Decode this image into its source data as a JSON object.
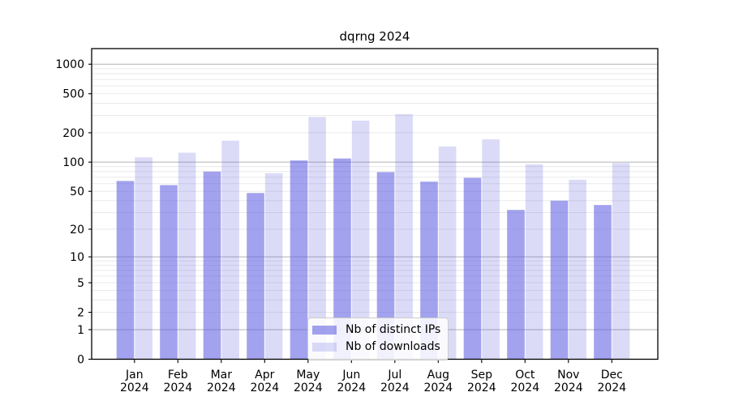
{
  "chart_data": {
    "type": "bar",
    "title": "dqrng 2024",
    "yscale": "log1p",
    "xlabel": "",
    "ylabel": "",
    "categories": [
      {
        "month": "Jan",
        "year": "2024"
      },
      {
        "month": "Feb",
        "year": "2024"
      },
      {
        "month": "Mar",
        "year": "2024"
      },
      {
        "month": "Apr",
        "year": "2024"
      },
      {
        "month": "May",
        "year": "2024"
      },
      {
        "month": "Jun",
        "year": "2024"
      },
      {
        "month": "Jul",
        "year": "2024"
      },
      {
        "month": "Aug",
        "year": "2024"
      },
      {
        "month": "Sep",
        "year": "2024"
      },
      {
        "month": "Oct",
        "year": "2024"
      },
      {
        "month": "Nov",
        "year": "2024"
      },
      {
        "month": "Dec",
        "year": "2024"
      }
    ],
    "series": [
      {
        "name": "Nb of distinct IPs",
        "color": "rgba(90,90,224,0.56)",
        "values": [
          64,
          58,
          80,
          48,
          104,
          109,
          79,
          63,
          69,
          32,
          40,
          36
        ]
      },
      {
        "name": "Nb of downloads",
        "color": "rgba(90,90,224,0.22)",
        "values": [
          112,
          125,
          166,
          77,
          290,
          266,
          310,
          145,
          171,
          95,
          66,
          98
        ]
      }
    ],
    "yticks": [
      0,
      1,
      2,
      5,
      10,
      20,
      50,
      100,
      200,
      500,
      1000
    ],
    "ylim": [
      0,
      1440
    ],
    "grid": {
      "major": [
        1,
        10,
        100,
        1000
      ],
      "minor": [
        2,
        3,
        4,
        5,
        6,
        7,
        8,
        9,
        20,
        30,
        40,
        50,
        60,
        70,
        80,
        90,
        200,
        300,
        400,
        500,
        600,
        700,
        800,
        900
      ]
    },
    "colors": {
      "grid_major": "#b3b3b3",
      "grid_minor": "#eaeaea",
      "spine": "#000000",
      "tick_label": "#000000"
    },
    "legend_position": "lower center"
  }
}
